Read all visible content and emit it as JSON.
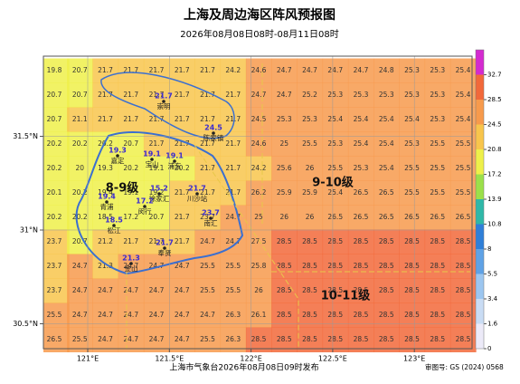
{
  "header": {
    "title": "上海及周边海区阵风预报图",
    "subtitle": "2026年08月08日08时-08月11日08时"
  },
  "footer": {
    "issuer": "上海市气象台2026年08月08日09时发布",
    "approval": "审图号: GS (2024) 0568"
  },
  "axes": {
    "lon_ticks": [
      {
        "value": 121,
        "label": "121°E"
      },
      {
        "value": 121.5,
        "label": "121.5°E"
      },
      {
        "value": 122,
        "label": "122°E"
      },
      {
        "value": 122.5,
        "label": "122.5°E"
      },
      {
        "value": 123,
        "label": "123°E"
      }
    ],
    "lat_ticks": [
      {
        "value": 31.5,
        "label": "31.5°N"
      },
      {
        "value": 31,
        "label": "31°N"
      },
      {
        "value": 30.5,
        "label": "30.5°N"
      }
    ]
  },
  "colorbar": {
    "ticks": [
      0,
      1.6,
      3.4,
      5.5,
      8,
      10.8,
      13.9,
      17.2,
      20.8,
      24.5,
      28.5,
      32.7
    ],
    "colors": [
      "#eceaf8",
      "#c9dcf4",
      "#9cc6f0",
      "#5fa2e6",
      "#2f7fd8",
      "#2fb8a8",
      "#9be04a",
      "#eef04a",
      "#f8c54c",
      "#f79a4c",
      "#f2683a",
      "#d42ad0"
    ]
  },
  "levels": [
    {
      "label": "8-9级"
    },
    {
      "label": "9-10级"
    },
    {
      "label": "10-11级"
    }
  ],
  "stations": [
    {
      "name": "崇明",
      "value": 21.7
    },
    {
      "name": "陈家镇",
      "value": 24.5
    },
    {
      "name": "嘉定",
      "value": 19.3
    },
    {
      "name": "宝山",
      "value": 19.1
    },
    {
      "name": "浦东",
      "value": 19.1
    },
    {
      "name": "青浦",
      "value": 19.4
    },
    {
      "name": "徐家汇",
      "value": 15.2
    },
    {
      "name": "闵行",
      "value": 17.2
    },
    {
      "name": "川沙站",
      "value": 21.7
    },
    {
      "name": "南汇",
      "value": 23.7
    },
    {
      "name": "松江",
      "value": 18.5
    },
    {
      "name": "奉贤",
      "value": 21.7
    },
    {
      "name": "金山",
      "value": 21.3
    }
  ],
  "grid": {
    "rows": [
      [
        19.8,
        20.7,
        21.7,
        21.7,
        21.7,
        21.7,
        21.7,
        24.2,
        24.6,
        24.7,
        24.7,
        24.7,
        24.7,
        24.8,
        25.3,
        25.3,
        25.4
      ],
      [
        20.7,
        20.7,
        21.7,
        21.7,
        21.7,
        21.7,
        21.7,
        21.7,
        24.7,
        24.7,
        25.2,
        25.3,
        25.3,
        25.3,
        25.3,
        25.3,
        25.4
      ],
      [
        20.7,
        21.1,
        21.7,
        21.7,
        21.7,
        21.7,
        21.7,
        21.7,
        24.5,
        25.3,
        25.3,
        25.4,
        25.4,
        25.4,
        25.4,
        25.3,
        25.4
      ],
      [
        20.2,
        20.2,
        20.2,
        20.7,
        21.7,
        21.7,
        21.7,
        21.7,
        24.6,
        25,
        25.5,
        25.3,
        25.4,
        25.4,
        25.3,
        25.5,
        25.5
      ],
      [
        20.2,
        20,
        19.3,
        20.2,
        19.1,
        20.2,
        21.7,
        21.7,
        24.2,
        25.6,
        26,
        25.5,
        25.3,
        25.4,
        25.5,
        25.5,
        25.5
      ],
      [
        20.1,
        20.2,
        19.4,
        19.1,
        19.2,
        21.7,
        21.7,
        21.7,
        26.2,
        25.9,
        25.9,
        25.4,
        26.5,
        26.5,
        25.5,
        25.5,
        25.5
      ],
      [
        20.2,
        20.2,
        18.5,
        17.2,
        20.7,
        21.7,
        23.7,
        24.7,
        25,
        26,
        26,
        26.5,
        26.5,
        26.5,
        26.5,
        26.5,
        26.5
      ],
      [
        23.7,
        20.7,
        21.2,
        21.7,
        21.7,
        21.7,
        24.7,
        24.7,
        27.5,
        28.5,
        28.5,
        28.5,
        28.5,
        28.5,
        28.5,
        28.5,
        28.5
      ],
      [
        23.7,
        24.7,
        21.3,
        24.7,
        24.7,
        24.7,
        25.5,
        25.5,
        25.8,
        28.5,
        28.5,
        28.5,
        28.5,
        28.5,
        28.5,
        28.5,
        28.5
      ],
      [
        23.7,
        24.7,
        24.7,
        24.7,
        24.7,
        24.7,
        25.5,
        25.5,
        26,
        28.5,
        28.5,
        28.5,
        28.5,
        28.5,
        28.5,
        28.5,
        28.5
      ],
      [
        25.5,
        24.7,
        24.7,
        24.7,
        24.7,
        24.7,
        24.7,
        26.3,
        26.1,
        28.5,
        28.5,
        28.5,
        28.5,
        28.5,
        28.5,
        28.5,
        28.5
      ],
      [
        26.5,
        25.5,
        24.7,
        24.7,
        24.7,
        24.7,
        25.5,
        26.3,
        28.5,
        28.5,
        28.5,
        28.5,
        28.5,
        28.5,
        28.5,
        28.5,
        28.5
      ]
    ]
  }
}
